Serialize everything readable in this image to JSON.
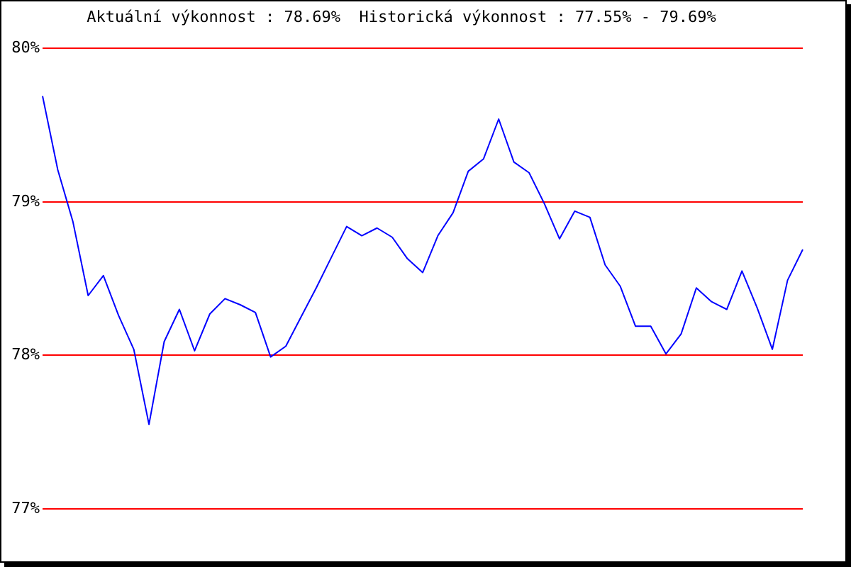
{
  "chart_data": {
    "type": "line",
    "title": "Aktuální výkonnost : 78.69%  Historická výkonnost : 77.55% - 79.69%",
    "categories": [
      null,
      null,
      null,
      null,
      null,
      null,
      null,
      null,
      null,
      null,
      null,
      null,
      null,
      null,
      null,
      null,
      null,
      null,
      null,
      null,
      null,
      null,
      null,
      null,
      null,
      null,
      null,
      null,
      null,
      null,
      null,
      null,
      null,
      null,
      null,
      null,
      null,
      null,
      null,
      null,
      null,
      null,
      null,
      null,
      null,
      null,
      null,
      null,
      null,
      null,
      null
    ],
    "series": [
      {
        "color": "#0000ff",
        "values": [
          79.69,
          79.21,
          78.87,
          78.39,
          78.52,
          78.26,
          78.04,
          77.55,
          78.09,
          78.3,
          78.03,
          78.27,
          78.37,
          78.33,
          78.28,
          77.99,
          78.06,
          78.25,
          78.44,
          78.64,
          78.84,
          78.78,
          78.83,
          78.77,
          78.63,
          78.54,
          78.78,
          78.93,
          79.2,
          79.28,
          79.54,
          79.26,
          79.19,
          78.99,
          78.76,
          78.94,
          78.9,
          78.59,
          78.45,
          78.19,
          78.19,
          78.01,
          78.14,
          78.44,
          78.35,
          78.3,
          78.55,
          78.31,
          78.04,
          78.49,
          78.69
        ]
      }
    ],
    "ylim": [
      77,
      80
    ],
    "yticks": [
      {
        "value": 77,
        "label": "77%"
      },
      {
        "value": 78,
        "label": "78%"
      },
      {
        "value": 79,
        "label": "79%"
      },
      {
        "value": 80,
        "label": "80%"
      }
    ],
    "grid": "y",
    "legend": false,
    "tick_labels": "y",
    "marker": "none",
    "line_style": "solid"
  }
}
